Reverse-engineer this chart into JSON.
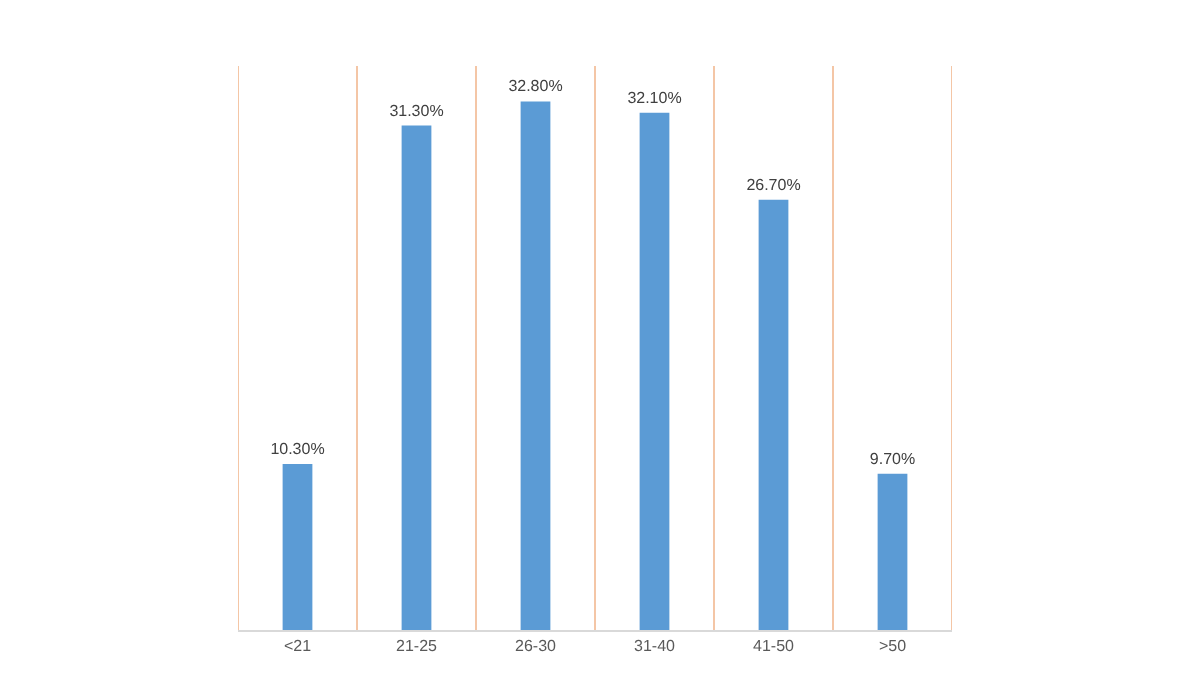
{
  "chart_data": {
    "type": "bar",
    "categories": [
      "<21",
      "21-25",
      "26-30",
      "31-40",
      "41-50",
      ">50"
    ],
    "values": [
      10.3,
      31.3,
      32.8,
      32.1,
      26.7,
      9.7
    ],
    "value_labels": [
      "10.30%",
      "31.30%",
      "32.80%",
      "32.10%",
      "26.70%",
      "9.70%"
    ],
    "color": "#5b9bd5",
    "ylim": [
      0,
      35
    ],
    "tick_labels": "x",
    "grid": "x",
    "legend": false
  }
}
